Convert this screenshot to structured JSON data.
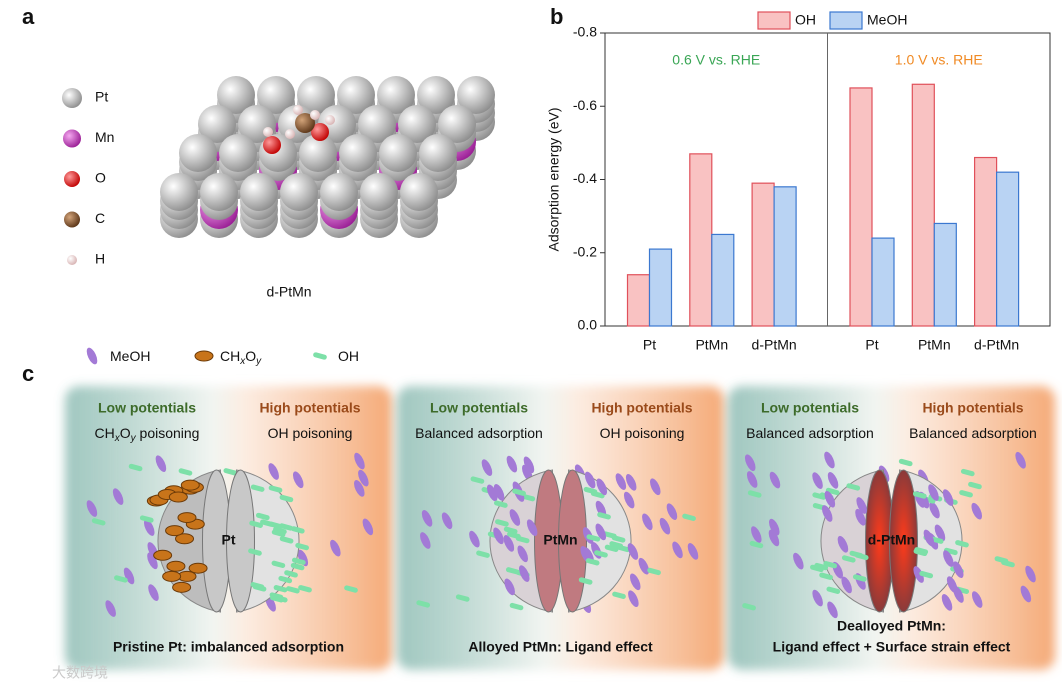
{
  "panel_a": {
    "label": "a",
    "legend": [
      "Pt",
      "Mn",
      "O",
      "C",
      "H"
    ],
    "caption": "d-PtMn"
  },
  "chart_data": {
    "panel_label": "b",
    "type": "bar",
    "ylabel": "Adsorption energy (eV)",
    "categories": [
      "Pt",
      "PtMn",
      "d-PtMn",
      "Pt",
      "PtMn",
      "d-PtMn"
    ],
    "groups": [
      {
        "label": "0.6 V vs. RHE",
        "color": "#3aa655"
      },
      {
        "label": "1.0 V vs. RHE",
        "color": "#f08a24"
      }
    ],
    "series": [
      {
        "name": "OH",
        "color": "#f9c2c2",
        "edge": "#e0505a",
        "values": [
          -0.14,
          -0.47,
          -0.39,
          -0.65,
          -0.66,
          -0.46
        ]
      },
      {
        "name": "MeOH",
        "color": "#b9d3f3",
        "edge": "#3b78d0",
        "values": [
          -0.21,
          -0.25,
          -0.38,
          -0.24,
          -0.28,
          -0.42
        ]
      }
    ],
    "ylim": [
      0,
      -0.8
    ],
    "yticks": [
      {
        "value": 0,
        "label": "0.0"
      },
      -0.2,
      -0.4,
      -0.6,
      -0.8
    ],
    "legend": "top"
  },
  "panel_c": {
    "label": "c",
    "legend": [
      [
        "MeOH"
      ],
      [
        "CH",
        "x",
        "O",
        "y"
      ],
      [
        "OH"
      ]
    ],
    "panels": [
      {
        "low": "Low potentials",
        "high": "High potentials",
        "low_state": [
          "CH",
          "x",
          "O",
          "y",
          " poisoning"
        ],
        "high_state": [
          "OH poisoning"
        ],
        "core": "Pt",
        "caption": [
          "Pristine Pt: imbalanced adsorption"
        ]
      },
      {
        "low": "Low potentials",
        "high": "High potentials",
        "low_state": [
          "Balanced adsorption"
        ],
        "high_state": [
          "OH poisoning"
        ],
        "core": "PtMn",
        "caption": [
          "Alloyed PtMn: Ligand effect"
        ]
      },
      {
        "low": "Low potentials",
        "high": "High potentials",
        "low_state": [
          "Balanced adsorption"
        ],
        "high_state": [
          "Balanced adsorption"
        ],
        "core": "d-PtMn",
        "caption": [
          "Dealloyed PtMn:",
          "Ligand effect + Surface strain effect"
        ]
      }
    ]
  },
  "watermark": "大数跨境"
}
